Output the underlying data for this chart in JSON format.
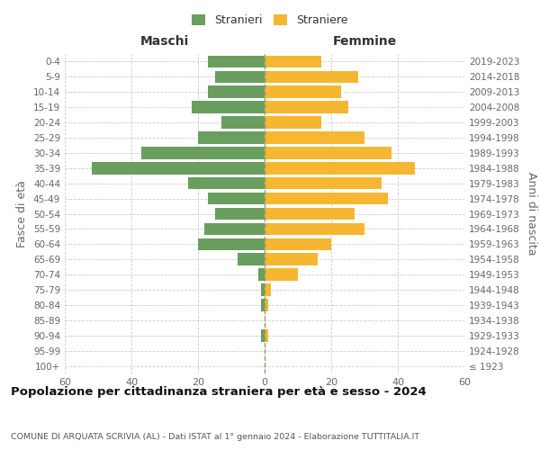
{
  "age_groups": [
    "100+",
    "95-99",
    "90-94",
    "85-89",
    "80-84",
    "75-79",
    "70-74",
    "65-69",
    "60-64",
    "55-59",
    "50-54",
    "45-49",
    "40-44",
    "35-39",
    "30-34",
    "25-29",
    "20-24",
    "15-19",
    "10-14",
    "5-9",
    "0-4"
  ],
  "birth_years": [
    "≤ 1923",
    "1924-1928",
    "1929-1933",
    "1934-1938",
    "1939-1943",
    "1944-1948",
    "1949-1953",
    "1954-1958",
    "1959-1963",
    "1964-1968",
    "1969-1973",
    "1974-1978",
    "1979-1983",
    "1984-1988",
    "1989-1993",
    "1994-1998",
    "1999-2003",
    "2004-2008",
    "2009-2013",
    "2014-2018",
    "2019-2023"
  ],
  "maschi": [
    0,
    0,
    1,
    0,
    1,
    1,
    2,
    8,
    20,
    18,
    15,
    17,
    23,
    52,
    37,
    20,
    13,
    22,
    17,
    15,
    17
  ],
  "femmine": [
    0,
    0,
    1,
    0,
    1,
    2,
    10,
    16,
    20,
    30,
    27,
    37,
    35,
    45,
    38,
    30,
    17,
    25,
    23,
    28,
    17
  ],
  "color_maschi": "#6a9e5f",
  "color_femmine": "#f5b731",
  "background_color": "#ffffff",
  "grid_color": "#cccccc",
  "xlim": 60,
  "title": "Popolazione per cittadinanza straniera per età e sesso - 2024",
  "subtitle": "COMUNE DI ARQUATA SCRIVIA (AL) - Dati ISTAT al 1° gennaio 2024 - Elaborazione TUTTITALIA.IT",
  "ylabel_left": "Fasce di età",
  "ylabel_right": "Anni di nascita",
  "label_maschi": "Stranieri",
  "label_femmine": "Straniere",
  "header_maschi": "Maschi",
  "header_femmine": "Femmine"
}
